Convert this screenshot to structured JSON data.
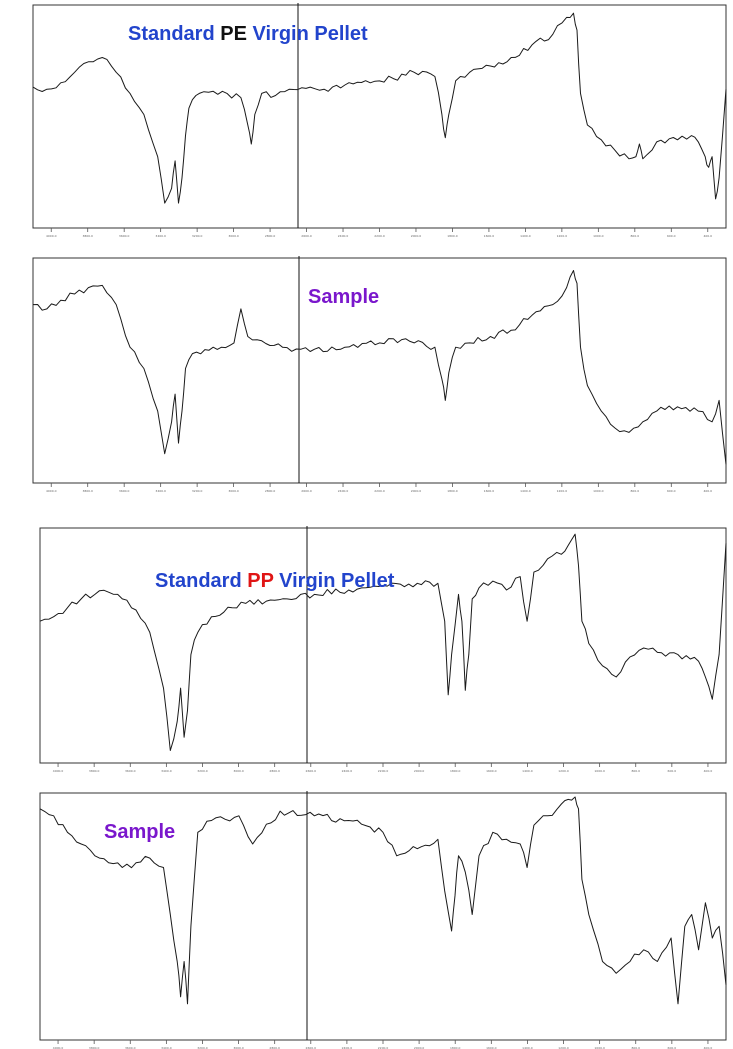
{
  "colors": {
    "blue": "#2244cc",
    "black": "#111111",
    "red": "#e01515",
    "purple": "#7a17cc",
    "trace": "#1a1a1a"
  },
  "chart_data": [
    {
      "type": "line",
      "title_parts": [
        {
          "text": "Standard ",
          "color": "blue"
        },
        {
          "text": "PE",
          "color": "black"
        },
        {
          "text": " Virgin Pellet",
          "color": "blue"
        }
      ],
      "xlabel": "",
      "ylabel": "",
      "grid": false,
      "x": [
        0,
        0.02,
        0.04,
        0.06,
        0.08,
        0.1,
        0.12,
        0.14,
        0.16,
        0.18,
        0.19,
        0.2,
        0.205,
        0.21,
        0.215,
        0.22,
        0.225,
        0.23,
        0.24,
        0.26,
        0.28,
        0.3,
        0.31,
        0.315,
        0.32,
        0.33,
        0.35,
        0.37,
        0.4,
        0.42,
        0.45,
        0.48,
        0.52,
        0.55,
        0.58,
        0.59,
        0.595,
        0.6,
        0.61,
        0.63,
        0.66,
        0.69,
        0.72,
        0.75,
        0.77,
        0.78,
        0.785,
        0.79,
        0.8,
        0.82,
        0.84,
        0.86,
        0.87,
        0.875,
        0.88,
        0.9,
        0.93,
        0.95,
        0.96,
        0.97,
        0.975,
        0.98,
        0.985,
        0.99,
        1.0
      ],
      "values": [
        0.63,
        0.62,
        0.65,
        0.7,
        0.75,
        0.77,
        0.7,
        0.6,
        0.5,
        0.3,
        0.08,
        0.15,
        0.28,
        0.08,
        0.2,
        0.4,
        0.53,
        0.57,
        0.6,
        0.61,
        0.6,
        0.58,
        0.45,
        0.36,
        0.5,
        0.6,
        0.59,
        0.62,
        0.63,
        0.62,
        0.64,
        0.66,
        0.67,
        0.7,
        0.68,
        0.5,
        0.39,
        0.5,
        0.66,
        0.7,
        0.73,
        0.77,
        0.83,
        0.88,
        0.96,
        0.98,
        0.9,
        0.6,
        0.45,
        0.38,
        0.33,
        0.29,
        0.3,
        0.36,
        0.29,
        0.37,
        0.38,
        0.4,
        0.37,
        0.3,
        0.25,
        0.3,
        0.1,
        0.2,
        0.62
      ],
      "ylim": [
        0,
        1
      ],
      "xlim": [
        0,
        1
      ],
      "tick_labels": [
        "4000.0",
        "3800.0",
        "3600.0",
        "3400.0",
        "3200.0",
        "3000.0",
        "2800.0",
        "2600.0",
        "2400.0",
        "2200.0",
        "2000.0",
        "1800.0",
        "1600.0",
        "1400.0",
        "1200.0",
        "1000.0",
        "800.0",
        "600.0",
        "400.0"
      ]
    },
    {
      "type": "line",
      "title_parts": [
        {
          "text": "Sample",
          "color": "purple"
        }
      ],
      "xlabel": "",
      "ylabel": "",
      "grid": false,
      "x": [
        0,
        0.02,
        0.04,
        0.06,
        0.08,
        0.1,
        0.12,
        0.14,
        0.16,
        0.18,
        0.19,
        0.2,
        0.205,
        0.21,
        0.215,
        0.22,
        0.23,
        0.26,
        0.29,
        0.3,
        0.31,
        0.33,
        0.36,
        0.4,
        0.45,
        0.5,
        0.52,
        0.55,
        0.58,
        0.59,
        0.595,
        0.6,
        0.61,
        0.63,
        0.66,
        0.69,
        0.72,
        0.75,
        0.77,
        0.78,
        0.785,
        0.79,
        0.8,
        0.82,
        0.84,
        0.86,
        0.88,
        0.9,
        0.93,
        0.96,
        0.98,
        0.99,
        1.0
      ],
      "values": [
        0.8,
        0.78,
        0.82,
        0.85,
        0.88,
        0.89,
        0.8,
        0.6,
        0.5,
        0.3,
        0.1,
        0.25,
        0.38,
        0.15,
        0.3,
        0.5,
        0.57,
        0.6,
        0.62,
        0.78,
        0.65,
        0.63,
        0.6,
        0.58,
        0.6,
        0.62,
        0.64,
        0.62,
        0.6,
        0.45,
        0.35,
        0.48,
        0.6,
        0.62,
        0.65,
        0.68,
        0.75,
        0.8,
        0.88,
        0.96,
        0.9,
        0.6,
        0.42,
        0.3,
        0.22,
        0.2,
        0.25,
        0.3,
        0.32,
        0.3,
        0.25,
        0.35,
        0.05
      ],
      "ylim": [
        0,
        1
      ],
      "xlim": [
        0,
        1
      ],
      "tick_labels": [
        "4000.0",
        "3800.0",
        "3600.0",
        "3400.0",
        "3200.0",
        "3000.0",
        "2800.0",
        "2600.0",
        "2400.0",
        "2200.0",
        "2000.0",
        "1800.0",
        "1600.0",
        "1400.0",
        "1200.0",
        "1000.0",
        "800.0",
        "600.0",
        "400.0"
      ]
    },
    {
      "type": "line",
      "title_parts": [
        {
          "text": "Standard ",
          "color": "blue"
        },
        {
          "text": "PP",
          "color": "red"
        },
        {
          "text": " Virgin Pellet",
          "color": "blue"
        }
      ],
      "xlabel": "",
      "ylabel": "",
      "grid": false,
      "x": [
        0,
        0.02,
        0.04,
        0.06,
        0.08,
        0.1,
        0.12,
        0.14,
        0.16,
        0.18,
        0.19,
        0.2,
        0.205,
        0.21,
        0.215,
        0.22,
        0.23,
        0.25,
        0.28,
        0.3,
        0.33,
        0.36,
        0.4,
        0.45,
        0.5,
        0.55,
        0.58,
        0.59,
        0.595,
        0.6,
        0.61,
        0.615,
        0.62,
        0.625,
        0.63,
        0.64,
        0.66,
        0.68,
        0.7,
        0.71,
        0.72,
        0.74,
        0.76,
        0.77,
        0.78,
        0.785,
        0.79,
        0.8,
        0.82,
        0.84,
        0.86,
        0.88,
        0.9,
        0.93,
        0.96,
        0.97,
        0.98,
        0.99,
        1.0
      ],
      "values": [
        0.6,
        0.62,
        0.66,
        0.7,
        0.72,
        0.73,
        0.7,
        0.65,
        0.55,
        0.3,
        0.02,
        0.15,
        0.3,
        0.08,
        0.2,
        0.45,
        0.55,
        0.62,
        0.66,
        0.68,
        0.69,
        0.7,
        0.72,
        0.74,
        0.76,
        0.77,
        0.77,
        0.6,
        0.27,
        0.45,
        0.72,
        0.6,
        0.29,
        0.45,
        0.7,
        0.75,
        0.78,
        0.74,
        0.8,
        0.6,
        0.82,
        0.88,
        0.9,
        0.94,
        0.99,
        0.85,
        0.6,
        0.5,
        0.4,
        0.35,
        0.44,
        0.48,
        0.46,
        0.45,
        0.42,
        0.35,
        0.25,
        0.45,
        0.95
      ],
      "ylim": [
        0,
        1
      ],
      "xlim": [
        0,
        1
      ],
      "tick_labels": [
        "4000.0",
        "3800.0",
        "3600.0",
        "3400.0",
        "3200.0",
        "3000.0",
        "2800.0",
        "2600.0",
        "2400.0",
        "2200.0",
        "2000.0",
        "1800.0",
        "1600.0",
        "1400.0",
        "1200.0",
        "1000.0",
        "800.0",
        "600.0",
        "400.0"
      ]
    },
    {
      "type": "line",
      "title_parts": [
        {
          "text": "Sample",
          "color": "purple"
        }
      ],
      "xlabel": "",
      "ylabel": "",
      "grid": false,
      "x": [
        0,
        0.02,
        0.04,
        0.06,
        0.08,
        0.1,
        0.12,
        0.14,
        0.16,
        0.18,
        0.19,
        0.2,
        0.205,
        0.21,
        0.215,
        0.22,
        0.23,
        0.25,
        0.29,
        0.31,
        0.35,
        0.4,
        0.45,
        0.5,
        0.52,
        0.55,
        0.58,
        0.59,
        0.6,
        0.605,
        0.61,
        0.62,
        0.63,
        0.64,
        0.66,
        0.68,
        0.7,
        0.71,
        0.72,
        0.74,
        0.76,
        0.77,
        0.78,
        0.785,
        0.79,
        0.8,
        0.82,
        0.84,
        0.86,
        0.88,
        0.9,
        0.92,
        0.93,
        0.94,
        0.95,
        0.96,
        0.97,
        0.98,
        0.99,
        1.0
      ],
      "values": [
        0.95,
        0.92,
        0.85,
        0.8,
        0.75,
        0.72,
        0.7,
        0.72,
        0.74,
        0.7,
        0.5,
        0.3,
        0.15,
        0.3,
        0.12,
        0.45,
        0.85,
        0.9,
        0.92,
        0.8,
        0.94,
        0.92,
        0.9,
        0.85,
        0.75,
        0.78,
        0.82,
        0.6,
        0.43,
        0.58,
        0.75,
        0.68,
        0.5,
        0.75,
        0.85,
        0.82,
        0.8,
        0.7,
        0.88,
        0.92,
        0.97,
        0.99,
        1.0,
        0.95,
        0.65,
        0.5,
        0.3,
        0.25,
        0.3,
        0.35,
        0.3,
        0.4,
        0.12,
        0.45,
        0.5,
        0.35,
        0.55,
        0.4,
        0.45,
        0.2
      ],
      "ylim": [
        0,
        1
      ],
      "xlim": [
        0,
        1
      ],
      "tick_labels": [
        "4000.0",
        "3800.0",
        "3600.0",
        "3400.0",
        "3200.0",
        "3000.0",
        "2800.0",
        "2600.0",
        "2400.0",
        "2200.0",
        "2000.0",
        "1800.0",
        "1600.0",
        "1400.0",
        "1200.0",
        "1000.0",
        "800.0",
        "600.0",
        "400.0"
      ]
    }
  ]
}
